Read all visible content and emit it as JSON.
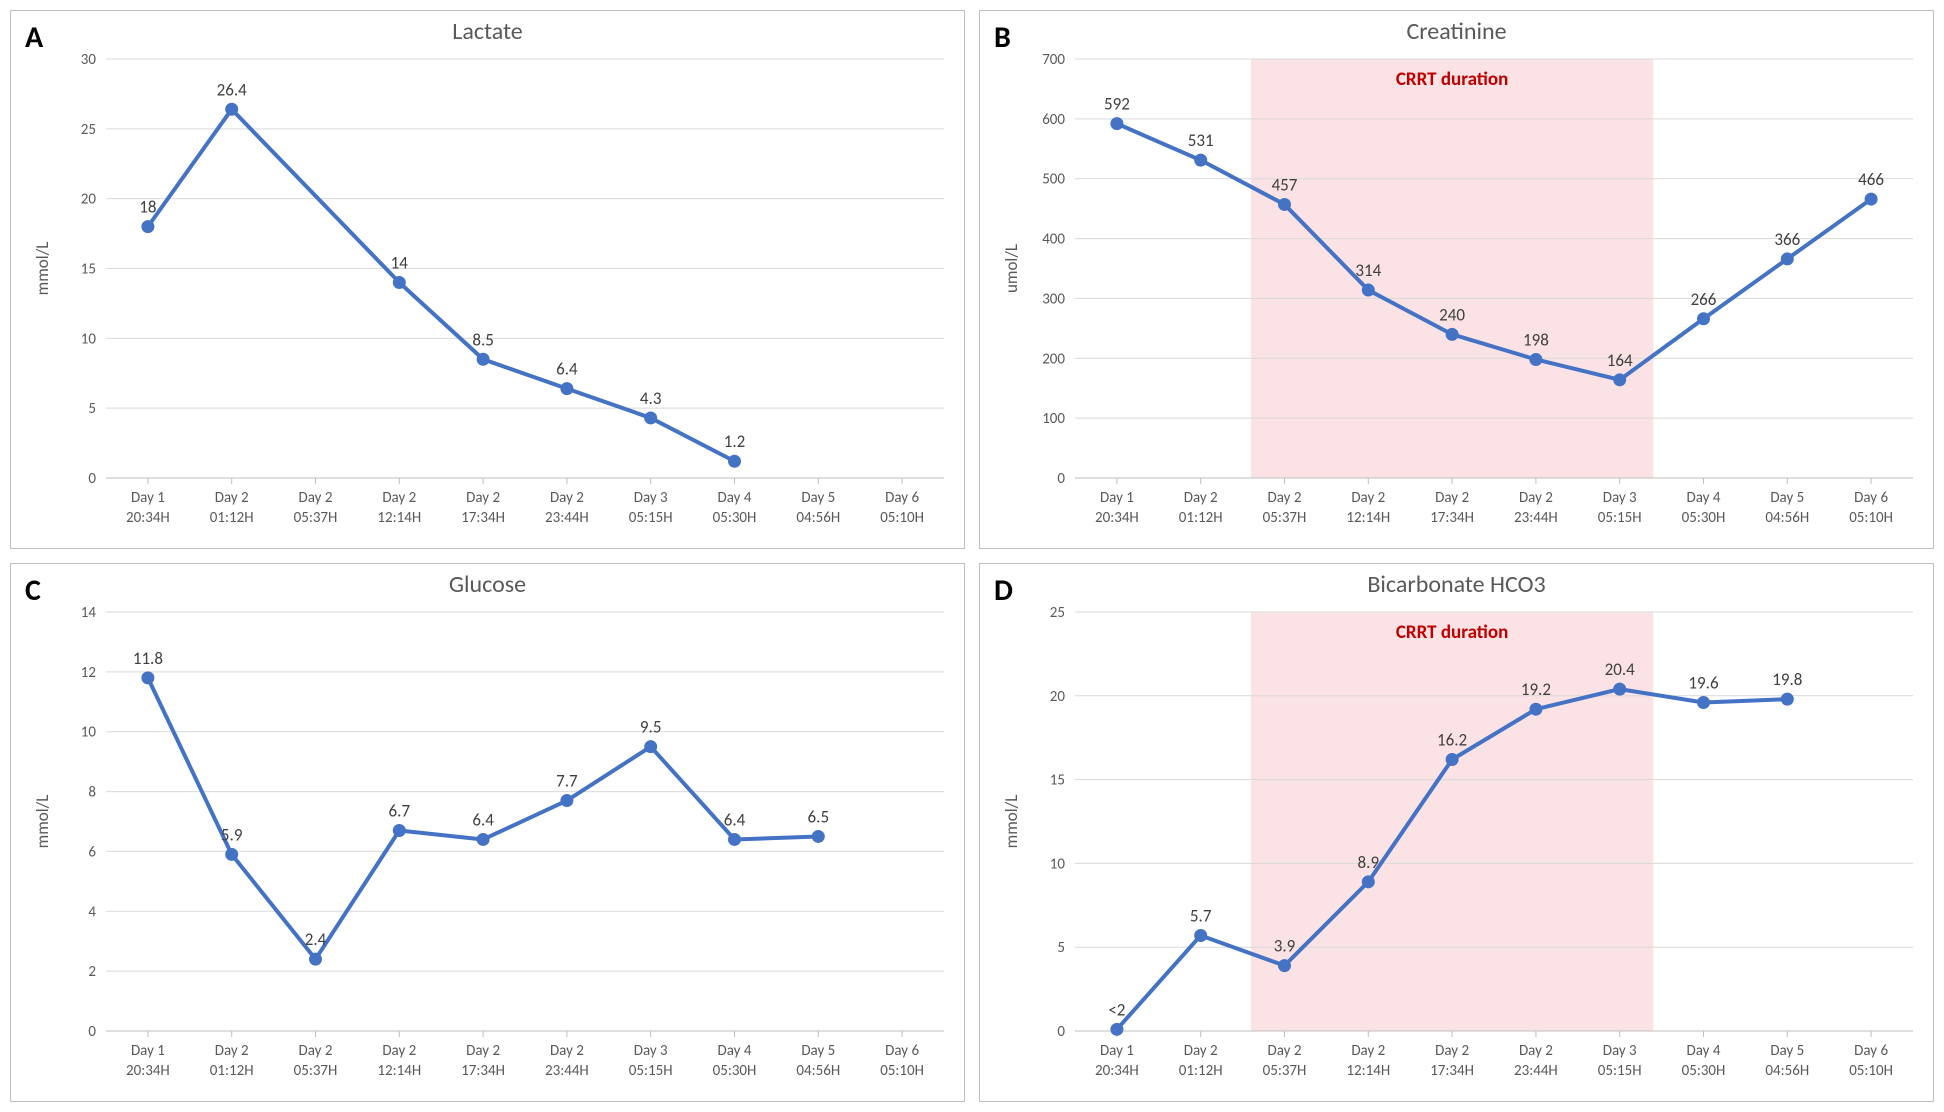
{
  "global": {
    "x_labels_line1": [
      "Day 1",
      "Day 2",
      "Day 2",
      "Day 2",
      "Day 2",
      "Day 2",
      "Day 3",
      "Day 4",
      "Day 5",
      "Day 6"
    ],
    "x_labels_line2": [
      "20:34H",
      "01:12H",
      "05:37H",
      "12:14H",
      "17:34H",
      "23:44H",
      "05:15H",
      "05:30H",
      "04:56H",
      "05:10H"
    ],
    "panel_letter_fontsize": 30,
    "title_fontsize": 24,
    "title_color": "#595959",
    "axis_label_fontsize": 17,
    "axis_label_color": "#595959",
    "tick_fontsize": 15,
    "tick_color": "#595959",
    "datalabel_fontsize": 17,
    "datalabel_color": "#404040",
    "line_color": "#4472c4",
    "line_width": 4,
    "marker_fill": "#4472c4",
    "marker_stroke": "#4472c4",
    "marker_radius": 6,
    "grid_color": "#d9d9d9",
    "grid_width": 1,
    "axis_color": "#bfbfbf",
    "background_color": "#ffffff",
    "crrt_fill": "#fbe2e4",
    "crrt_label": "CRRT duration",
    "crrt_label_color": "#c00000",
    "crrt_label_fontsize": 19,
    "crrt_label_weight": 700
  },
  "panels": {
    "A": {
      "letter": "A",
      "title": "Lactate",
      "ylabel": "mmol/L",
      "ylim": [
        0,
        30
      ],
      "ystep": 5,
      "crrt": null,
      "values": [
        18,
        26.4,
        null,
        14,
        8.5,
        6.4,
        4.3,
        1.2,
        null,
        null
      ],
      "labels": [
        "18",
        "26.4",
        "",
        "14",
        "8.5",
        "6.4",
        "4.3",
        "1.2",
        "",
        ""
      ]
    },
    "B": {
      "letter": "B",
      "title": "Creatinine",
      "ylabel": "umol/L",
      "ylim": [
        0,
        700
      ],
      "ystep": 100,
      "crrt": {
        "start_idx": 2,
        "end_idx": 6.4
      },
      "values": [
        592,
        531,
        457,
        314,
        240,
        198,
        164,
        266,
        366,
        466
      ],
      "labels": [
        "592",
        "531",
        "457",
        "314",
        "240",
        "198",
        "164",
        "266",
        "366",
        "466"
      ]
    },
    "C": {
      "letter": "C",
      "title": "Glucose",
      "ylabel": "mmol/L",
      "ylim": [
        0,
        14
      ],
      "ystep": 2,
      "crrt": null,
      "values": [
        11.8,
        5.9,
        2.4,
        6.7,
        6.4,
        7.7,
        9.5,
        6.4,
        6.5,
        null
      ],
      "labels": [
        "11.8",
        "5.9",
        "2.4",
        "6.7",
        "6.4",
        "7.7",
        "9.5",
        "6.4",
        "6.5",
        ""
      ]
    },
    "D": {
      "letter": "D",
      "title": "Bicarbonate HCO3",
      "ylabel": "mmol/L",
      "ylim": [
        0,
        25
      ],
      "ystep": 5,
      "crrt": {
        "start_idx": 2,
        "end_idx": 6.4
      },
      "values": [
        0.1,
        5.7,
        3.9,
        8.9,
        16.2,
        19.2,
        20.4,
        19.6,
        19.8,
        null
      ],
      "labels": [
        "<2",
        "5.7",
        "3.9",
        "8.9",
        "16.2",
        "19.2",
        "20.4",
        "19.6",
        "19.8",
        ""
      ]
    }
  }
}
